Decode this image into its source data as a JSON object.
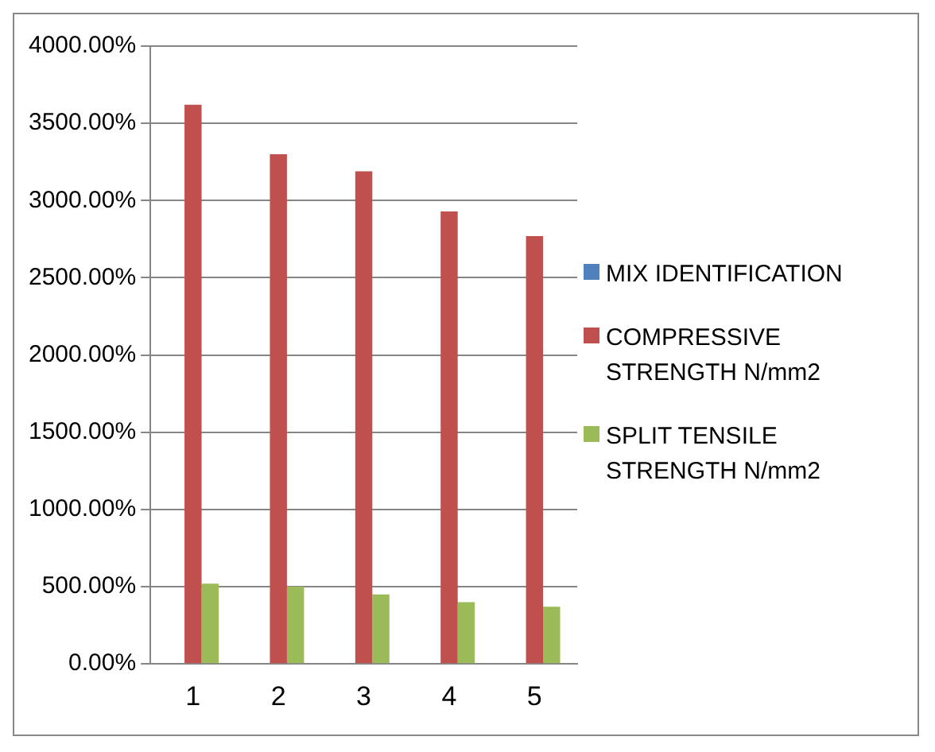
{
  "chart_data": {
    "type": "bar",
    "categories": [
      "1",
      "2",
      "3",
      "4",
      "5"
    ],
    "series": [
      {
        "name": "MIX IDENTIFICATION",
        "color": "#4f81bd",
        "values": [
          null,
          null,
          null,
          null,
          null
        ]
      },
      {
        "name": "COMPRESSIVE STRENGTH N/mm2",
        "color": "#c0504d",
        "values": [
          3620,
          3300,
          3190,
          2930,
          2770
        ]
      },
      {
        "name": "SPLIT TENSILE STRENGTH N/mm2",
        "color": "#9bbb59",
        "values": [
          520,
          500,
          450,
          400,
          370
        ]
      }
    ],
    "ylim": [
      0,
      4000
    ],
    "yticks": [
      {
        "value": 0,
        "label": "0.00%"
      },
      {
        "value": 500,
        "label": "500.00%"
      },
      {
        "value": 1000,
        "label": "1000.00%"
      },
      {
        "value": 1500,
        "label": "1500.00%"
      },
      {
        "value": 2000,
        "label": "2000.00%"
      },
      {
        "value": 2500,
        "label": "2500.00%"
      },
      {
        "value": 3000,
        "label": "3000.00%"
      },
      {
        "value": 3500,
        "label": "3500.00%"
      },
      {
        "value": 4000,
        "label": "4000.00%"
      }
    ],
    "grid": "y",
    "legend": "right"
  }
}
